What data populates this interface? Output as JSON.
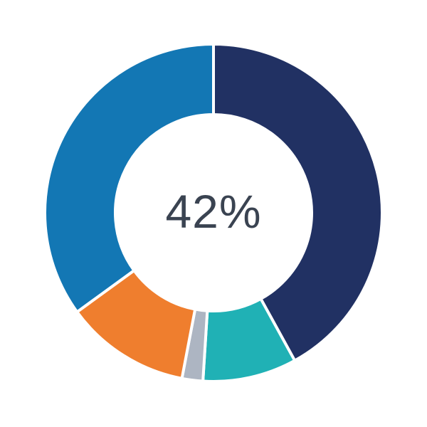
{
  "chart_data": {
    "type": "pie",
    "subtype": "donut",
    "title": "",
    "center_label": "42%",
    "legend_position": "none",
    "start_angle_deg": 0,
    "direction": "clockwise",
    "segments": [
      {
        "name": "navy",
        "value": 42,
        "color": "#213163"
      },
      {
        "name": "teal",
        "value": 9,
        "color": "#20b1b5"
      },
      {
        "name": "gray",
        "value": 2,
        "color": "#adb5c2"
      },
      {
        "name": "orange",
        "value": 12,
        "color": "#ef7e2e"
      },
      {
        "name": "blue",
        "value": 35,
        "color": "#1377b4"
      }
    ]
  },
  "colors": {
    "background": "#ffffff",
    "separator": "#ffffff",
    "label_text": "#3a4351"
  }
}
